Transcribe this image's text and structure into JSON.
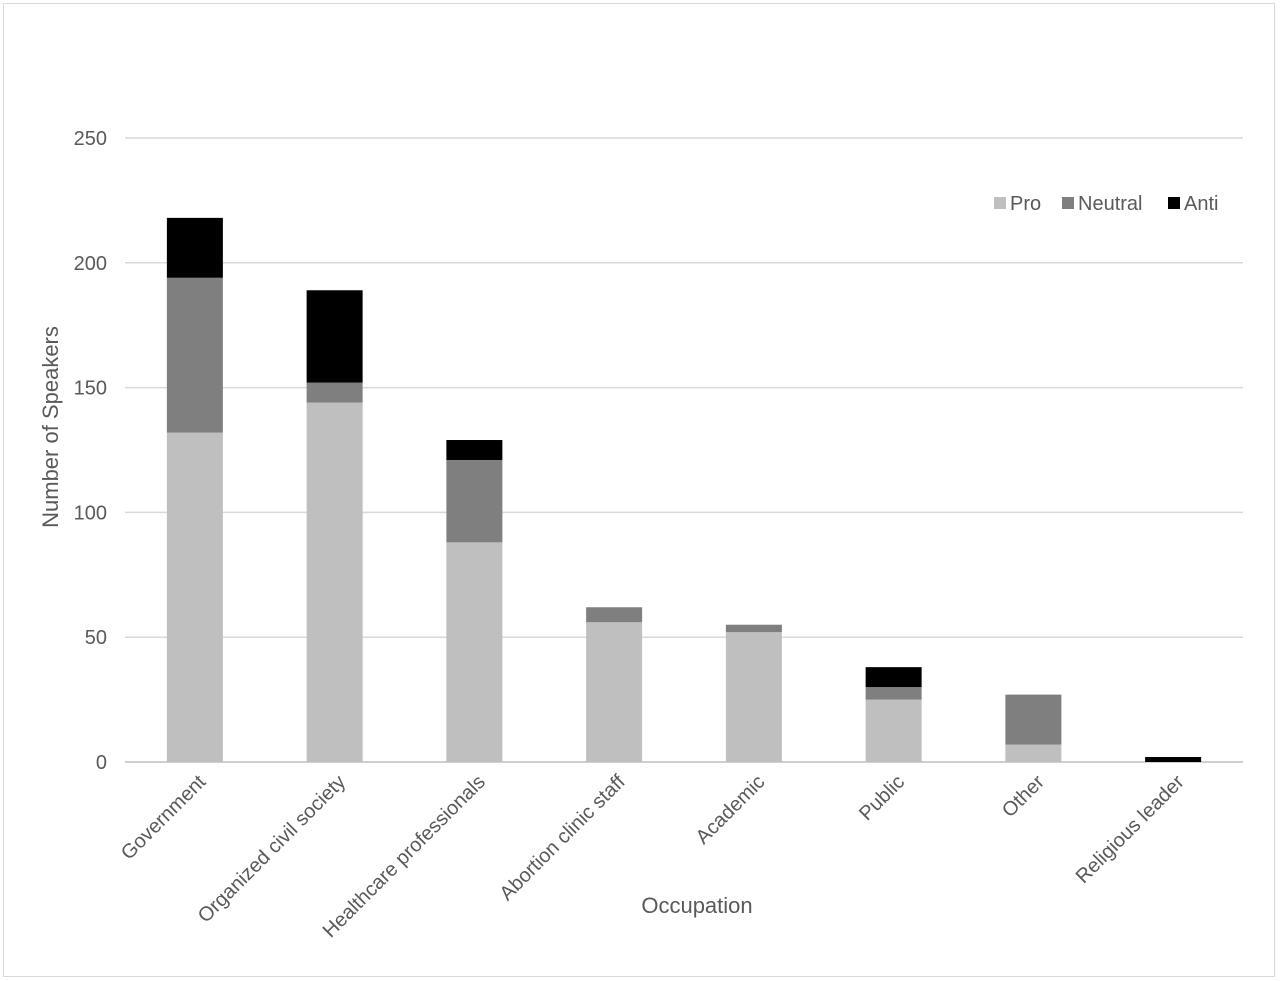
{
  "chart_data": {
    "type": "bar",
    "stacked": true,
    "title": "",
    "xlabel": "Occupation",
    "ylabel": "Number of Speakers",
    "ylim": [
      0,
      250
    ],
    "yticks": [
      0,
      50,
      100,
      150,
      200,
      250
    ],
    "grid": true,
    "legend_position": "top-right",
    "categories": [
      "Government",
      "Organized civil society",
      "Healthcare professionals",
      "Abortion clinic staff",
      "Academic",
      "Public",
      "Other",
      "Religious leader"
    ],
    "series": [
      {
        "name": "Pro",
        "color": "#bfbfbf",
        "values": [
          132,
          144,
          88,
          56,
          52,
          25,
          7,
          0
        ]
      },
      {
        "name": "Neutral",
        "color": "#7f7f7f",
        "values": [
          62,
          8,
          33,
          6,
          3,
          5,
          20,
          0
        ]
      },
      {
        "name": "Anti",
        "color": "#000000",
        "values": [
          24,
          37,
          8,
          0,
          0,
          8,
          0,
          2
        ]
      }
    ]
  }
}
